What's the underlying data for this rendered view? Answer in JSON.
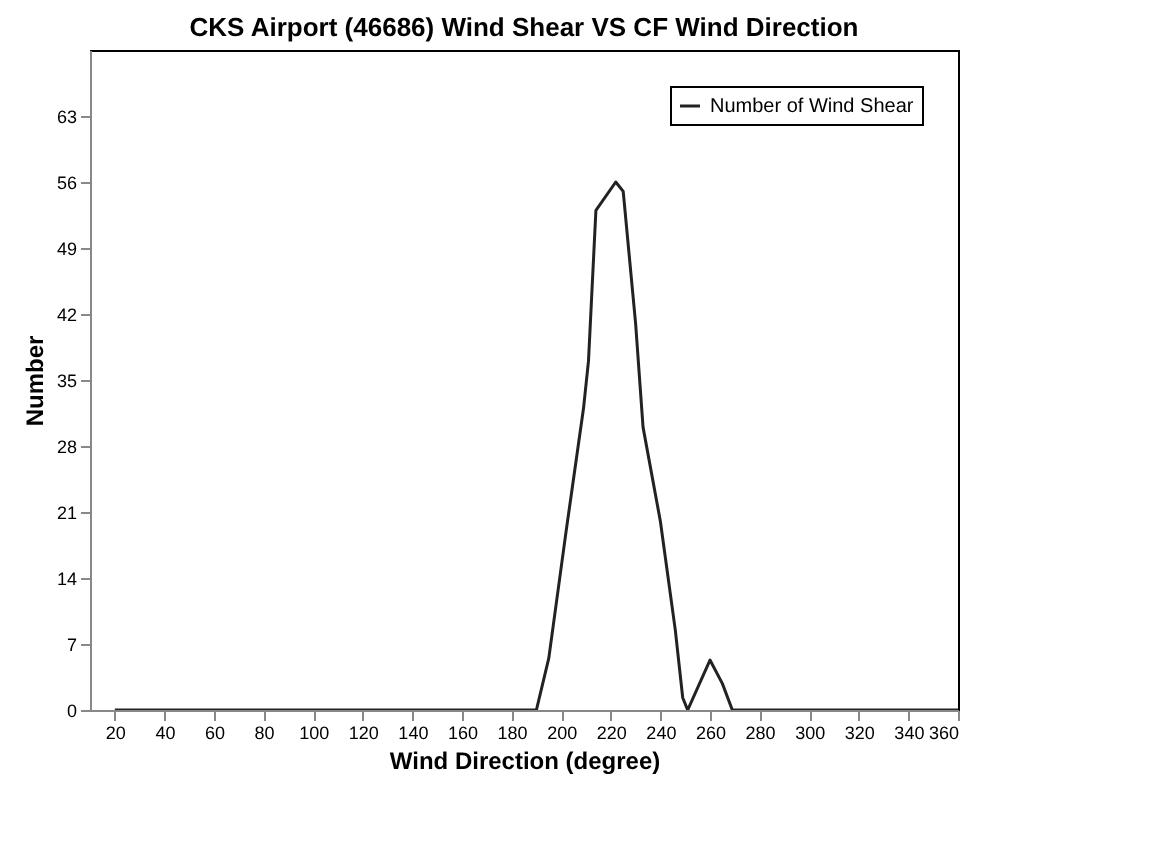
{
  "chart_data": {
    "type": "line",
    "title": "CKS Airport (46686) Wind Shear VS CF Wind Direction",
    "xlabel": "Wind Direction (degree)",
    "ylabel": "Number",
    "x": [
      20,
      190,
      195,
      202,
      209,
      211,
      214,
      222,
      225,
      230,
      233,
      240,
      246,
      249,
      251,
      260,
      265,
      269,
      300,
      360
    ],
    "series": [
      {
        "name": "Number of Wind Shear",
        "color": "#222222",
        "values": [
          0,
          0,
          5.5,
          19,
          32,
          37,
          53,
          56,
          55,
          41,
          30,
          20,
          8.5,
          1.3,
          0,
          5.3,
          2.8,
          0,
          0,
          0
        ]
      }
    ],
    "xlim": [
      10,
      360
    ],
    "xticks": [
      20,
      40,
      60,
      80,
      100,
      120,
      140,
      160,
      180,
      200,
      220,
      240,
      260,
      280,
      300,
      320,
      340,
      360
    ],
    "ylim": [
      0,
      70
    ],
    "yticks": [
      0,
      7,
      14,
      21,
      28,
      35,
      42,
      49,
      56,
      63
    ],
    "legend": "top right",
    "grid": false,
    "marker": "none",
    "line_style": "solid"
  }
}
